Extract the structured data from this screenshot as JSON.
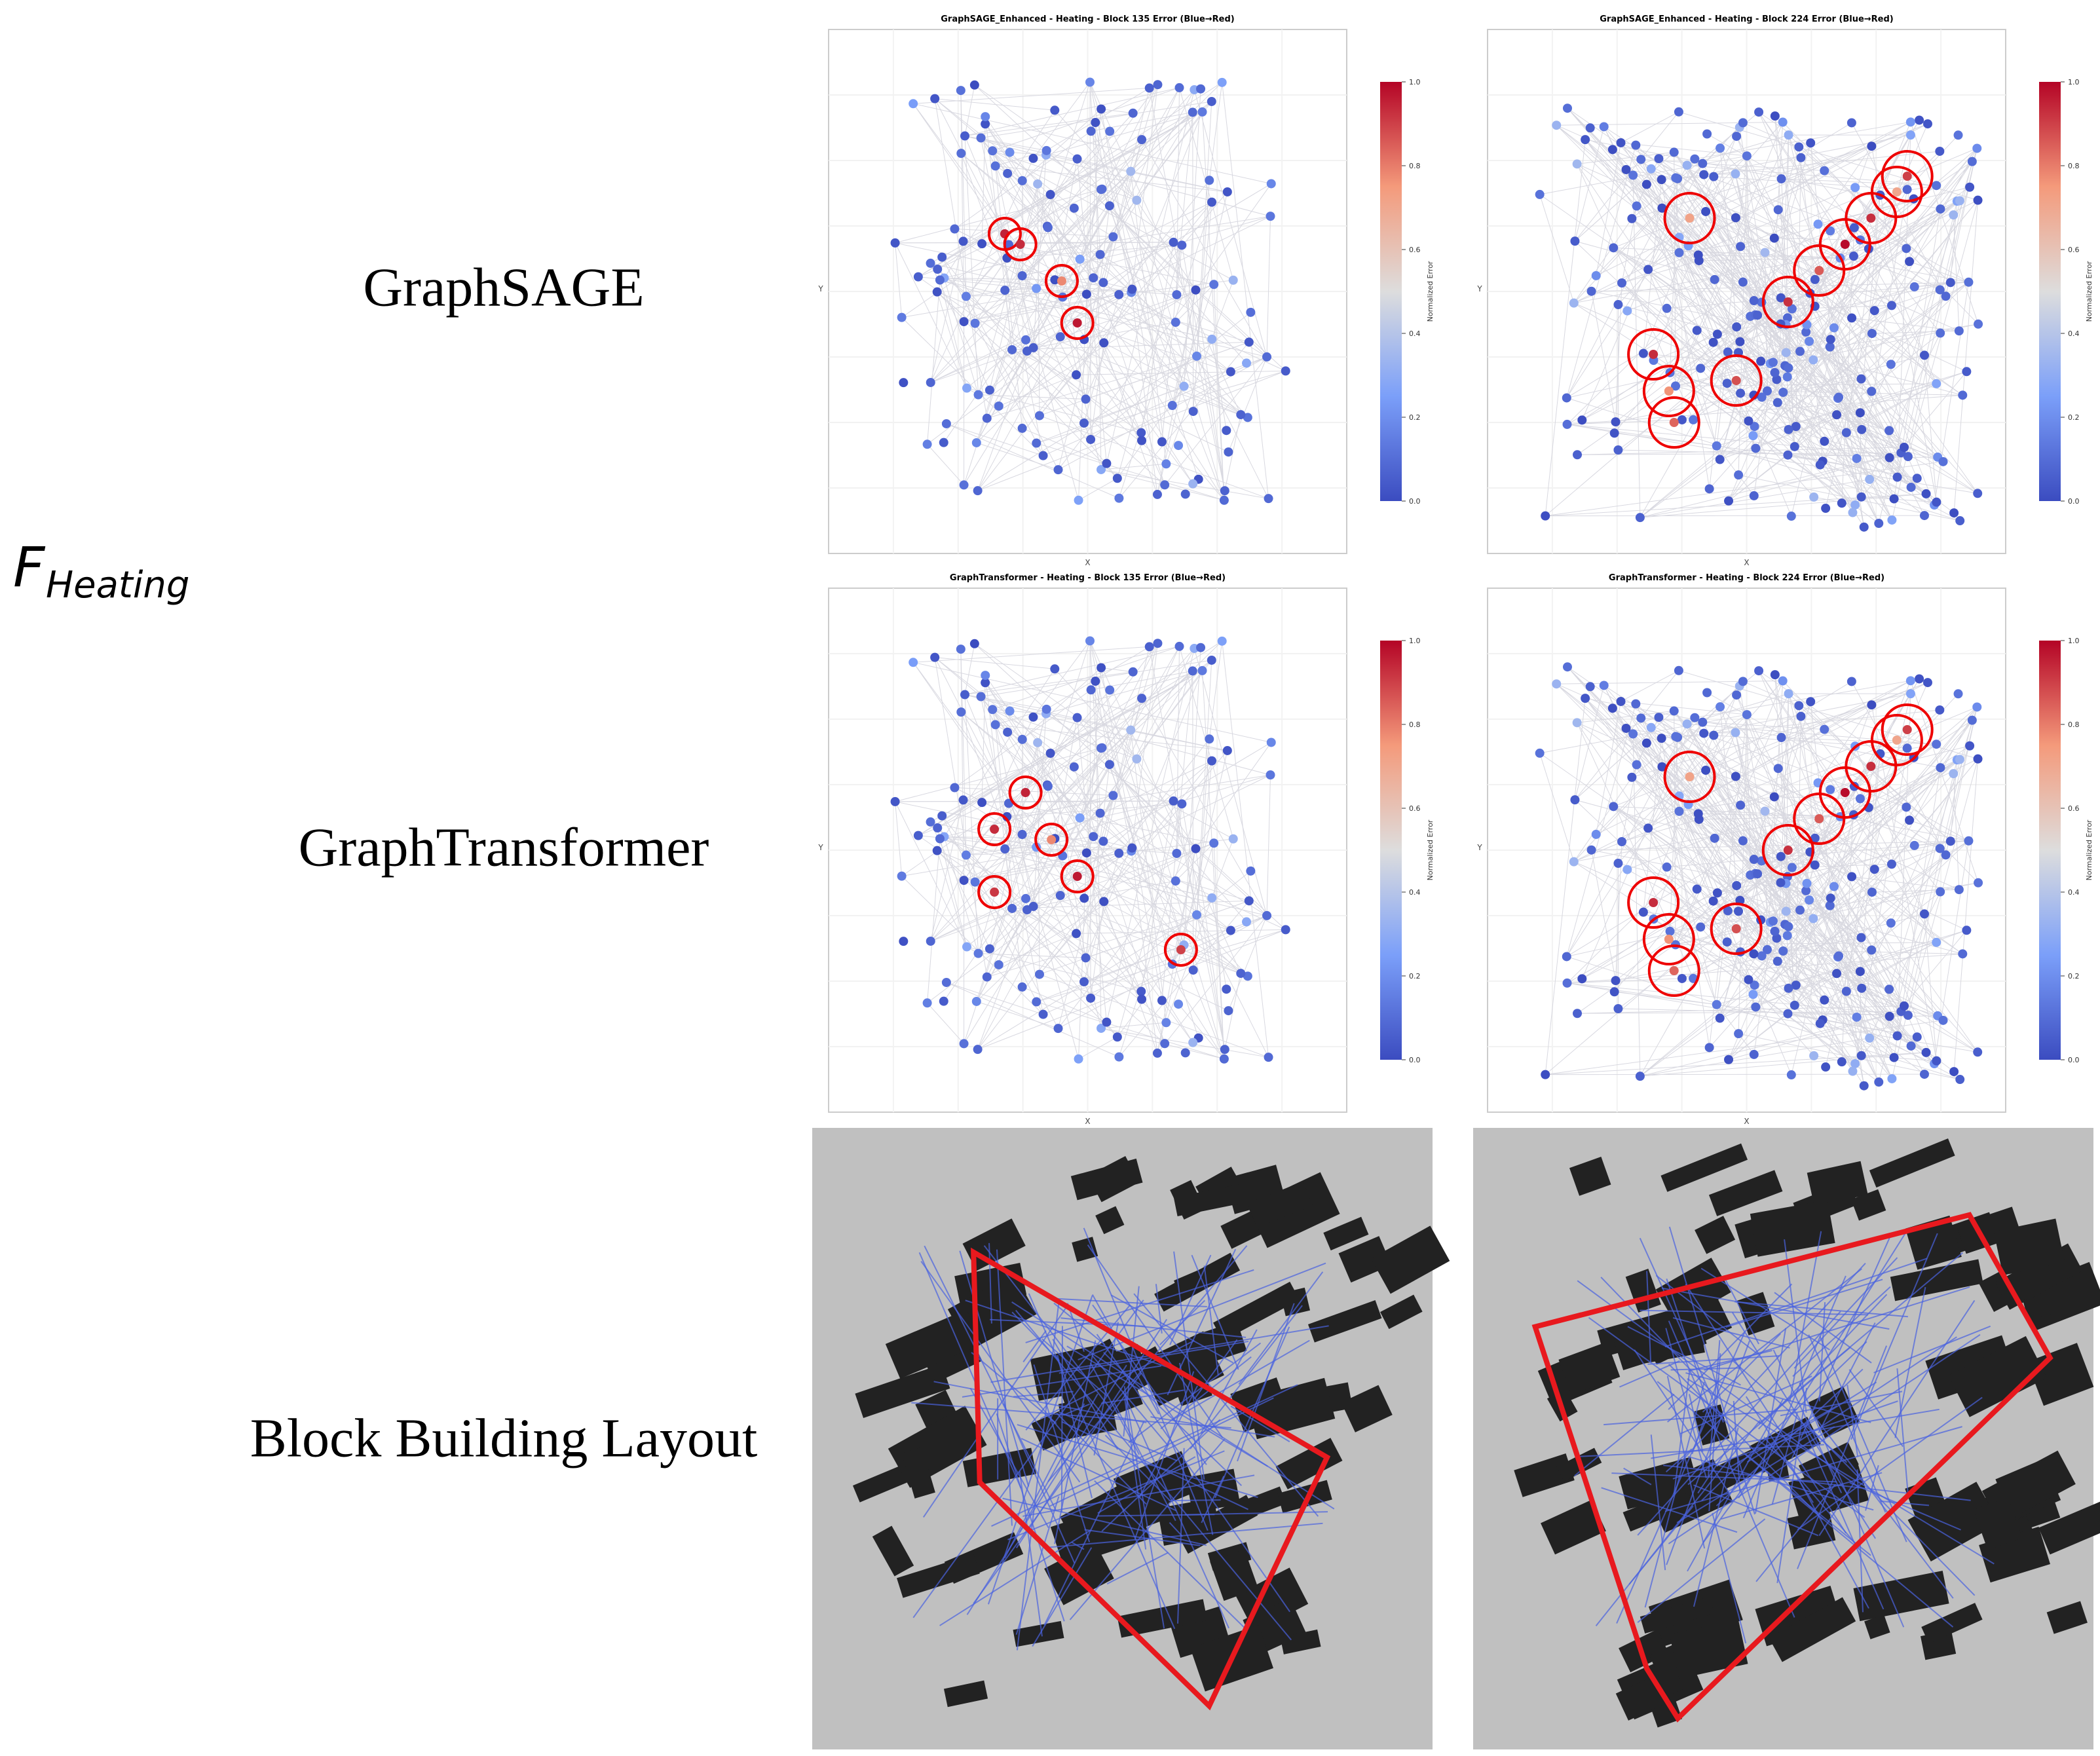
{
  "row_label": {
    "main": "F",
    "subscript": "Heating"
  },
  "rows": [
    {
      "label": "GraphSAGE"
    },
    {
      "label": "GraphTransformer"
    },
    {
      "label": "Block Building Layout"
    }
  ],
  "panels": [
    {
      "title": "GraphSAGE_Enhanced - Heating - Block 135 Error (Blue→Red)"
    },
    {
      "title": "GraphSAGE_Enhanced - Heating - Block 224 Error (Blue→Red)"
    },
    {
      "title": "GraphTransformer - Heating - Block 135 Error (Blue→Red)"
    },
    {
      "title": "GraphTransformer - Heating - Block 224 Error (Blue→Red)"
    }
  ],
  "axes": {
    "x_label": "X",
    "y_label": "Y"
  },
  "colorbar": {
    "label": "Normalized Error",
    "lim": [
      0,
      1
    ],
    "ticks": [
      {
        "value": 0,
        "label": "0.0"
      },
      {
        "value": 0.2,
        "label": "0.2"
      },
      {
        "value": 0.4,
        "label": "0.4"
      },
      {
        "value": 0.6,
        "label": "0.6"
      },
      {
        "value": 0.8,
        "label": "0.8"
      },
      {
        "value": 1,
        "label": "1.0"
      }
    ]
  }
}
